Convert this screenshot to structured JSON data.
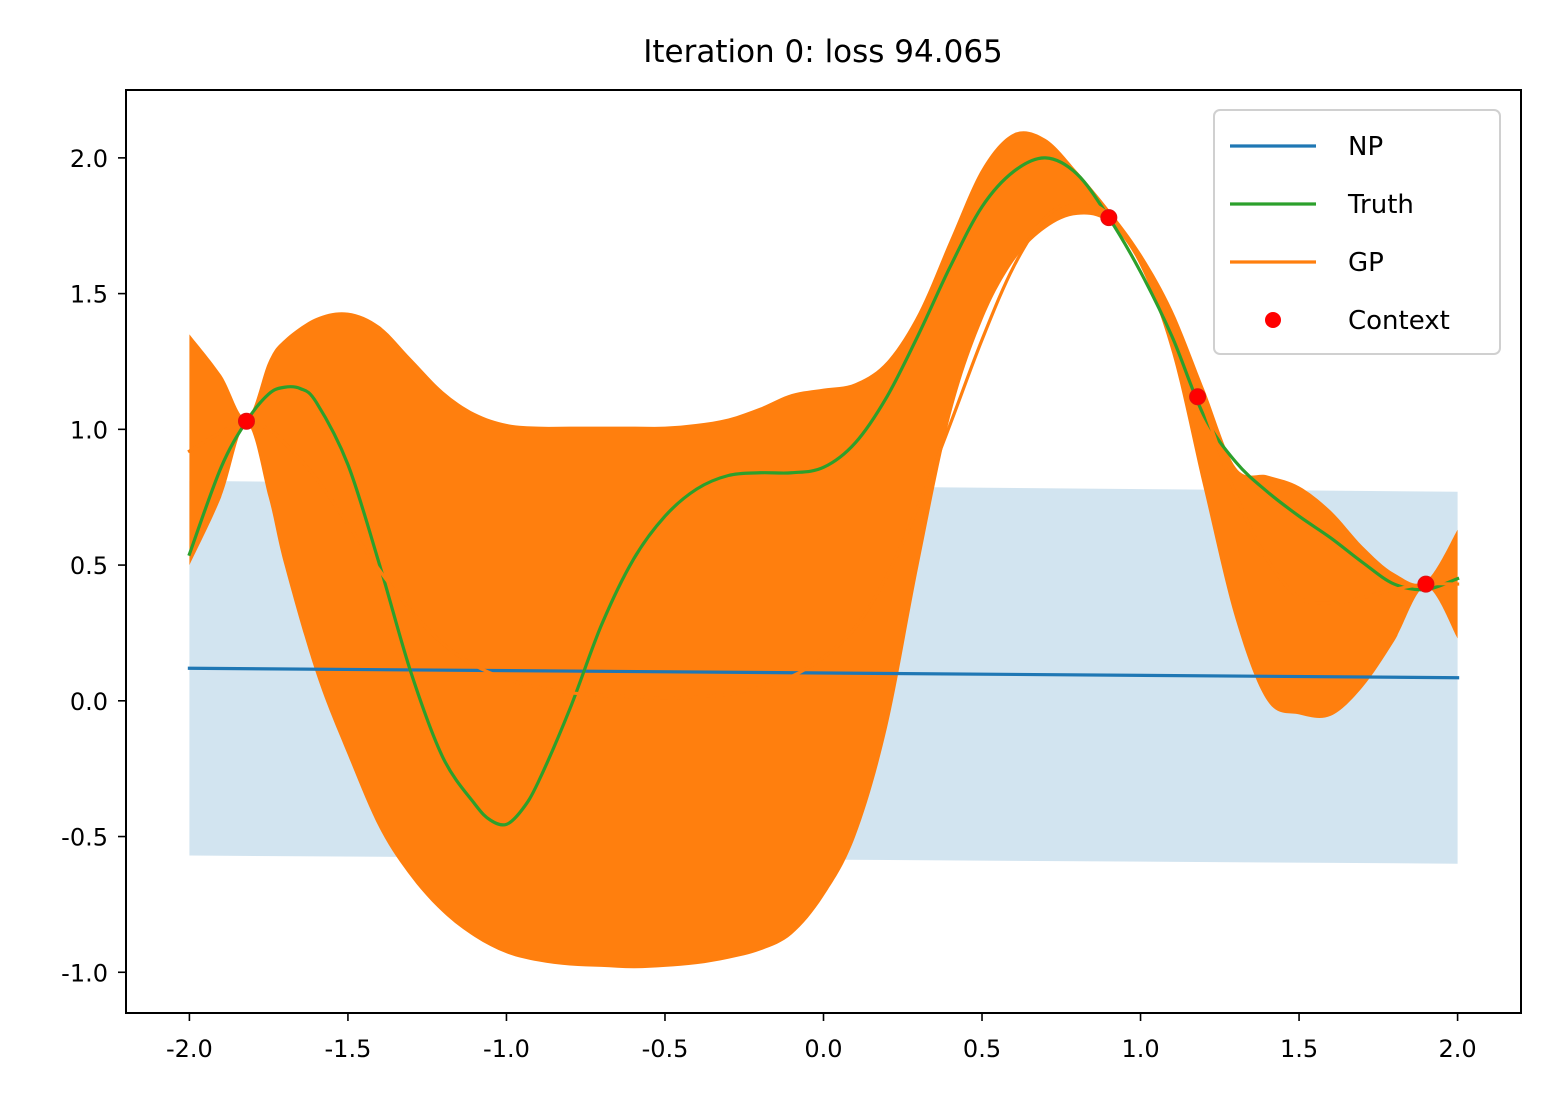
{
  "chart_data": {
    "type": "line",
    "title": "Iteration 0: loss 94.065",
    "xlabel": "",
    "ylabel": "",
    "xlim": [
      -2.2,
      2.2
    ],
    "ylim": [
      -1.15,
      2.25
    ],
    "xticks": [
      -2.0,
      -1.5,
      -1.0,
      -0.5,
      0.0,
      0.5,
      1.0,
      1.5,
      2.0
    ],
    "xtick_labels": [
      "-2.0",
      "-1.5",
      "-1.0",
      "-0.5",
      "0.0",
      "0.5",
      "1.0",
      "1.5",
      "2.0"
    ],
    "yticks": [
      -1.0,
      -0.5,
      0.0,
      0.5,
      1.0,
      1.5,
      2.0
    ],
    "ytick_labels": [
      "-1.0",
      "-0.5",
      "0.0",
      "0.5",
      "1.0",
      "1.5",
      "2.0"
    ],
    "grid": false,
    "legend_position": "top-right",
    "colors": {
      "np": "#1f77b4",
      "truth": "#2ca02c",
      "gp": "#ff7f0e",
      "context": "#ff0000",
      "np_band": "#1f77b4",
      "gp_band": "#ff7f0e"
    },
    "legend": [
      {
        "label": "NP",
        "kind": "line",
        "series": "np"
      },
      {
        "label": "Truth",
        "kind": "line",
        "series": "truth"
      },
      {
        "label": "GP",
        "kind": "line",
        "series": "gp"
      },
      {
        "label": "Context",
        "kind": "marker",
        "series": "context"
      }
    ],
    "series": [
      {
        "name": "NP",
        "key": "np",
        "x": [
          -2.0,
          2.0
        ],
        "y": [
          0.12,
          0.085
        ]
      },
      {
        "name": "Truth",
        "key": "truth",
        "x": [
          -2.0,
          -1.9,
          -1.82,
          -1.75,
          -1.7,
          -1.65,
          -1.6,
          -1.5,
          -1.4,
          -1.3,
          -1.2,
          -1.1,
          -1.05,
          -1.0,
          -0.95,
          -0.9,
          -0.8,
          -0.7,
          -0.6,
          -0.5,
          -0.4,
          -0.3,
          -0.2,
          -0.1,
          0.0,
          0.1,
          0.2,
          0.3,
          0.4,
          0.5,
          0.6,
          0.7,
          0.8,
          0.9,
          1.0,
          1.1,
          1.2,
          1.3,
          1.4,
          1.5,
          1.6,
          1.7,
          1.8,
          1.9,
          2.0
        ],
        "y": [
          0.54,
          0.86,
          1.03,
          1.13,
          1.155,
          1.15,
          1.1,
          0.87,
          0.5,
          0.1,
          -0.21,
          -0.38,
          -0.44,
          -0.455,
          -0.4,
          -0.3,
          -0.03,
          0.28,
          0.52,
          0.68,
          0.78,
          0.83,
          0.84,
          0.84,
          0.86,
          0.95,
          1.12,
          1.35,
          1.6,
          1.82,
          1.95,
          2.0,
          1.94,
          1.78,
          1.58,
          1.34,
          1.05,
          0.88,
          0.77,
          0.68,
          0.6,
          0.51,
          0.43,
          0.41,
          0.45
        ]
      },
      {
        "name": "GP",
        "key": "gp",
        "x": [
          -2.0,
          -1.9,
          -1.82,
          -1.75,
          -1.7,
          -1.6,
          -1.5,
          -1.4,
          -1.3,
          -1.2,
          -1.1,
          -1.0,
          -0.9,
          -0.8,
          -0.7,
          -0.6,
          -0.5,
          -0.4,
          -0.3,
          -0.2,
          -0.1,
          0.0,
          0.1,
          0.2,
          0.3,
          0.4,
          0.5,
          0.6,
          0.7,
          0.8,
          0.9,
          1.0,
          1.1,
          1.2,
          1.3,
          1.4,
          1.5,
          1.6,
          1.7,
          1.8,
          1.9,
          2.0
        ],
        "y": [
          0.92,
          0.99,
          1.03,
          1.0,
          0.95,
          0.82,
          0.65,
          0.48,
          0.33,
          0.21,
          0.13,
          0.08,
          0.05,
          0.03,
          0.02,
          0.015,
          0.01,
          0.015,
          0.025,
          0.05,
          0.09,
          0.16,
          0.27,
          0.46,
          0.72,
          1.02,
          1.33,
          1.6,
          1.78,
          1.84,
          1.79,
          1.62,
          1.38,
          1.08,
          0.76,
          0.52,
          0.38,
          0.36,
          0.38,
          0.41,
          0.43,
          0.43
        ]
      }
    ],
    "bands": [
      {
        "name": "NP uncertainty",
        "key": "np_band",
        "x": [
          -2.0,
          2.0
        ],
        "lower": [
          -0.57,
          -0.6
        ],
        "upper": [
          0.81,
          0.77
        ],
        "alpha": 0.2
      },
      {
        "name": "GP uncertainty",
        "key": "gp_band",
        "x": [
          -2.0,
          -1.9,
          -1.82,
          -1.75,
          -1.7,
          -1.6,
          -1.5,
          -1.4,
          -1.3,
          -1.2,
          -1.1,
          -1.0,
          -0.9,
          -0.8,
          -0.7,
          -0.6,
          -0.5,
          -0.4,
          -0.3,
          -0.2,
          -0.1,
          0.0,
          0.1,
          0.2,
          0.3,
          0.4,
          0.5,
          0.6,
          0.7,
          0.8,
          0.9,
          1.0,
          1.1,
          1.2,
          1.3,
          1.4,
          1.5,
          1.6,
          1.7,
          1.8,
          1.9,
          2.0
        ],
        "lower": [
          0.5,
          0.75,
          1.02,
          0.75,
          0.5,
          0.1,
          -0.2,
          -0.47,
          -0.65,
          -0.78,
          -0.87,
          -0.93,
          -0.96,
          -0.975,
          -0.98,
          -0.985,
          -0.98,
          -0.97,
          -0.95,
          -0.92,
          -0.86,
          -0.72,
          -0.5,
          -0.1,
          0.5,
          1.05,
          1.4,
          1.62,
          1.74,
          1.79,
          1.76,
          1.6,
          1.28,
          0.78,
          0.3,
          0.0,
          -0.05,
          -0.055,
          0.05,
          0.22,
          0.42,
          0.23
        ],
        "upper": [
          1.35,
          1.2,
          1.04,
          1.25,
          1.33,
          1.41,
          1.43,
          1.38,
          1.26,
          1.14,
          1.06,
          1.02,
          1.01,
          1.01,
          1.01,
          1.01,
          1.01,
          1.02,
          1.04,
          1.08,
          1.13,
          1.15,
          1.17,
          1.25,
          1.43,
          1.7,
          1.96,
          2.09,
          2.07,
          1.95,
          1.81,
          1.65,
          1.44,
          1.15,
          0.86,
          0.83,
          0.79,
          0.7,
          0.57,
          0.47,
          0.44,
          0.63
        ]
      }
    ],
    "context_points": {
      "name": "Context",
      "key": "context",
      "x": [
        -1.82,
        0.9,
        1.18,
        1.9
      ],
      "y": [
        1.03,
        1.78,
        1.12,
        0.43
      ]
    }
  }
}
